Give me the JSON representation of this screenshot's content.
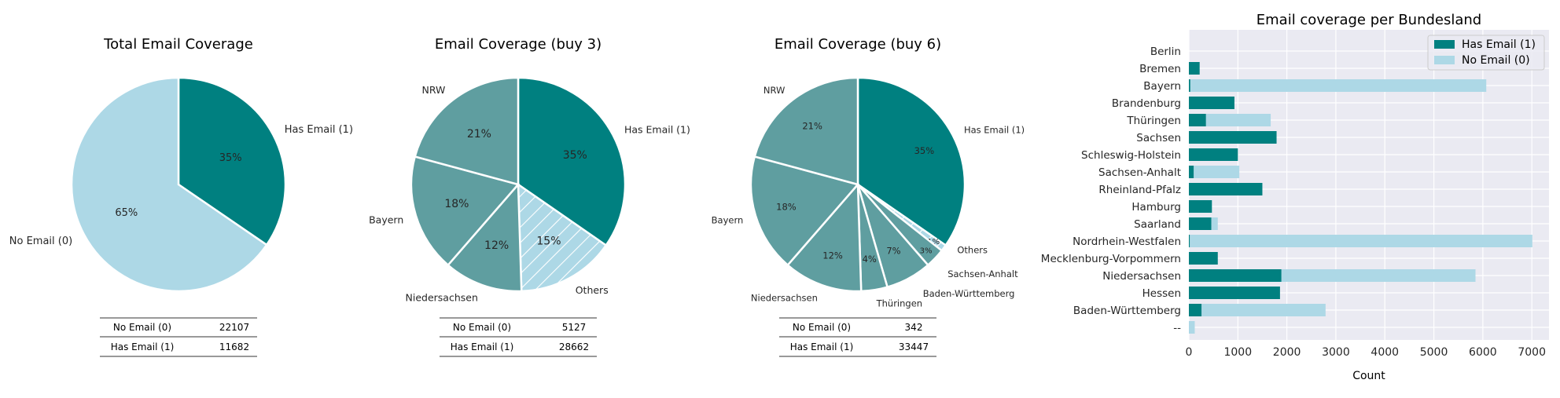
{
  "colors": {
    "has_email": "#008080",
    "no_email": "#add8e6",
    "region": "#5f9ea0",
    "panel_bg": "#eaeaf2",
    "grid": "#ffffff"
  },
  "chart_data": [
    {
      "type": "pie",
      "title": "Total Email Coverage",
      "slices": [
        {
          "label": "Has Email (1)",
          "value": 11682,
          "pct_label": "35%",
          "color_key": "has_email"
        },
        {
          "label": "No Email (0)",
          "value": 22107,
          "pct_label": "65%",
          "color_key": "no_email"
        }
      ],
      "table": [
        {
          "label": "No Email (0)",
          "value": "22107"
        },
        {
          "label": "Has Email (1)",
          "value": "11682"
        }
      ]
    },
    {
      "type": "pie",
      "title": "Email Coverage (buy 3)",
      "slices": [
        {
          "label": "Has Email (1)",
          "value": 35,
          "pct_label": "35%",
          "color_key": "has_email"
        },
        {
          "label": "Others",
          "value": 15,
          "pct_label": "15%",
          "color_key": "no_email",
          "hatch": true
        },
        {
          "label": "Niedersachsen",
          "value": 12,
          "pct_label": "12%",
          "color_key": "region"
        },
        {
          "label": "Bayern",
          "value": 18,
          "pct_label": "18%",
          "color_key": "region"
        },
        {
          "label": "NRW",
          "value": 21,
          "pct_label": "21%",
          "color_key": "region"
        }
      ],
      "table": [
        {
          "label": "No Email (0)",
          "value": "5127"
        },
        {
          "label": "Has Email (1)",
          "value": "28662"
        }
      ]
    },
    {
      "type": "pie",
      "title": "Email Coverage (buy 6)",
      "slices": [
        {
          "label": "Has Email (1)",
          "value": 35,
          "pct_label": "35%",
          "color_key": "has_email"
        },
        {
          "label": "Others",
          "value": 1,
          "pct_label": "1%",
          "color_key": "no_email",
          "hatch": true
        },
        {
          "label": "Sachsen-Anhalt",
          "value": 3,
          "pct_label": "3%",
          "color_key": "region"
        },
        {
          "label": "Baden-Württemberg",
          "value": 7,
          "pct_label": "7%",
          "color_key": "region"
        },
        {
          "label": "Thüringen",
          "value": 4,
          "pct_label": "4%",
          "color_key": "region"
        },
        {
          "label": "Niedersachsen",
          "value": 12,
          "pct_label": "12%",
          "color_key": "region"
        },
        {
          "label": "Bayern",
          "value": 18,
          "pct_label": "18%",
          "color_key": "region"
        },
        {
          "label": "NRW",
          "value": 21,
          "pct_label": "21%",
          "color_key": "region"
        }
      ],
      "table": [
        {
          "label": "No Email (0)",
          "value": "342"
        },
        {
          "label": "Has Email (1)",
          "value": "33447"
        }
      ]
    },
    {
      "type": "bar",
      "orientation": "horizontal",
      "stacked": true,
      "title": "Email coverage per Bundesland",
      "xlabel": "Count",
      "ylabel": "",
      "xlim": [
        0,
        7350
      ],
      "xticks": [
        0,
        1000,
        2000,
        3000,
        4000,
        5000,
        6000,
        7000
      ],
      "grid": true,
      "legend_position": "top-right",
      "categories": [
        "Berlin",
        "Bremen",
        "Bayern",
        "Brandenburg",
        "Thüringen",
        "Sachsen",
        "Schleswig-Holstein",
        "Sachsen-Anhalt",
        "Rheinland-Pfalz",
        "Hamburg",
        "Saarland",
        "Nordrhein-Westfalen",
        "Mecklenburg-Vorpommern",
        "Niedersachsen",
        "Hessen",
        "Baden-Württemberg",
        "--"
      ],
      "series": [
        {
          "name": "Has Email (1)",
          "color_key": "has_email",
          "values": [
            0,
            220,
            30,
            930,
            350,
            1790,
            1000,
            100,
            1500,
            470,
            460,
            20,
            590,
            1890,
            1860,
            260,
            0
          ]
        },
        {
          "name": "No Email (0)",
          "color_key": "no_email",
          "values": [
            0,
            0,
            6040,
            0,
            1320,
            0,
            0,
            930,
            0,
            0,
            130,
            6990,
            0,
            3960,
            0,
            2530,
            120
          ]
        }
      ]
    }
  ]
}
